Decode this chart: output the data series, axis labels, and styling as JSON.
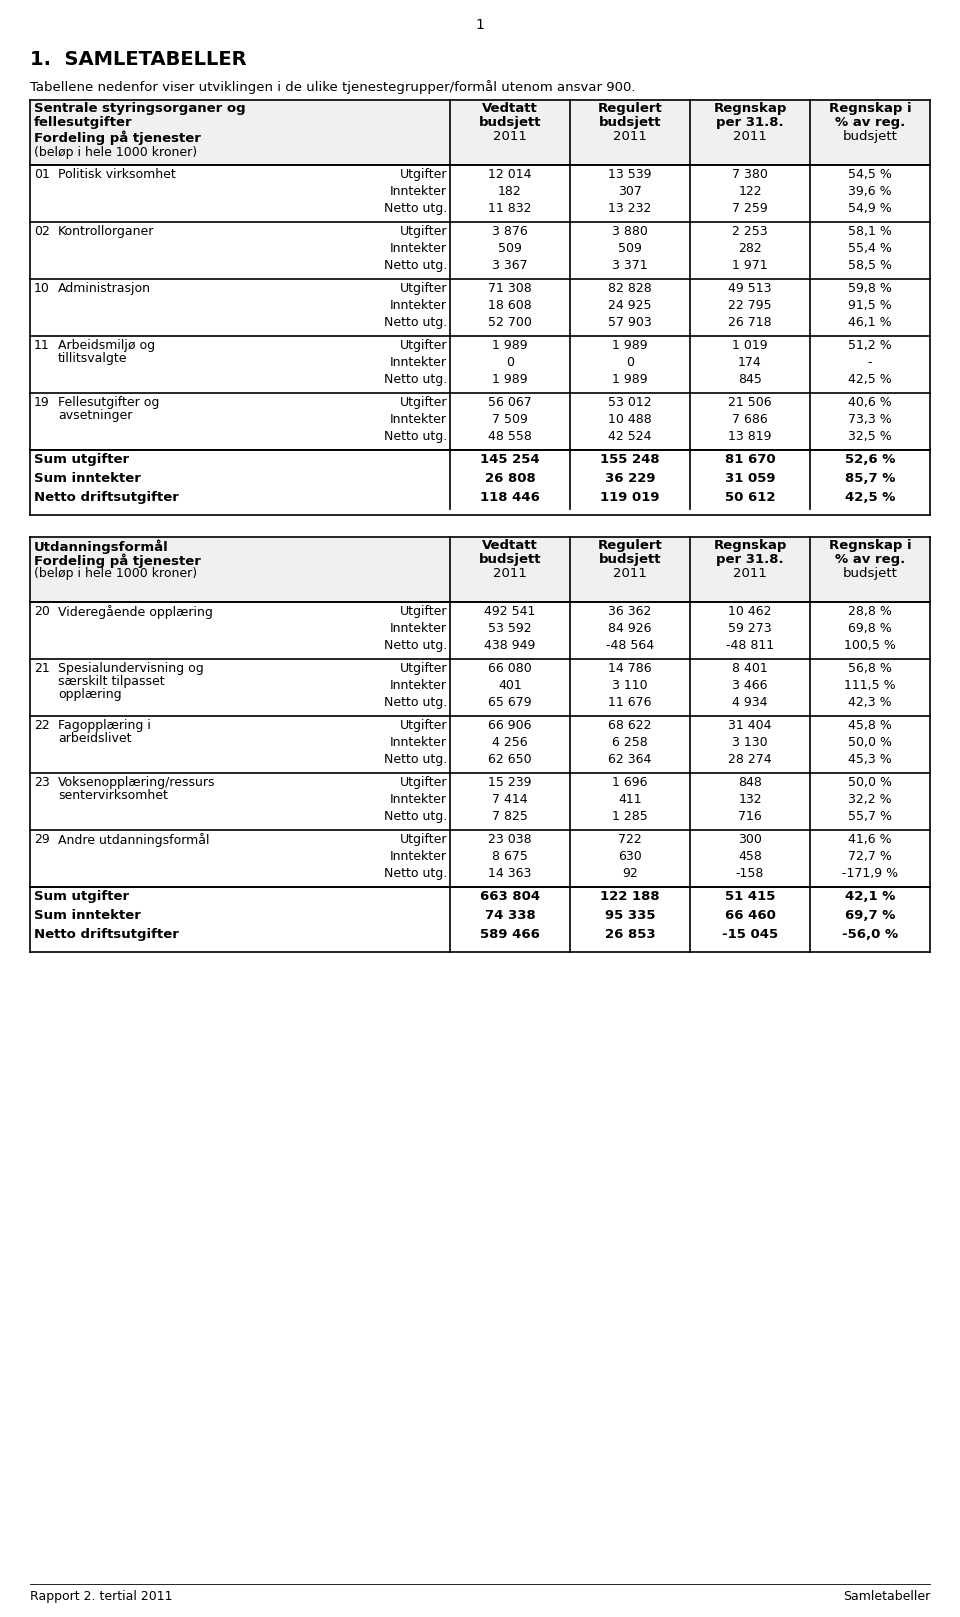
{
  "page_number": "1",
  "main_title": "1.  SAMLETABELLER",
  "subtitle": "Tabellene nedenfor viser utviklingen i de ulike tjenestegrupper/formål utenom ansvar 900.",
  "footer_left": "Rapport 2. tertial 2011",
  "footer_right": "Samletabeller",
  "table1": {
    "header_col1": "Sentrale styringsorganer og",
    "header_col1b": "fellesutgifter",
    "header_col1c": "Fordeling på tjenester",
    "header_col1d": "(beløp i hele 1000 kroner)",
    "header_col2": "Vedtatt\nbudsjett\n2011",
    "header_col3": "Regulert\nbudsjett\n2011",
    "header_col4": "Regnskap\nper 31.8.\n2011",
    "header_col5": "Regnskap i\n% av reg.\nbudsjett",
    "sections": [
      {
        "code": "01",
        "name": "Politisk virksomhet",
        "name2": "",
        "rows": [
          {
            "label": "Utgifter",
            "v1": "12 014",
            "v2": "13 539",
            "v3": "7 380",
            "v4": "54,5 %"
          },
          {
            "label": "Inntekter",
            "v1": "182",
            "v2": "307",
            "v3": "122",
            "v4": "39,6 %"
          },
          {
            "label": "Netto utg.",
            "v1": "11 832",
            "v2": "13 232",
            "v3": "7 259",
            "v4": "54,9 %"
          }
        ]
      },
      {
        "code": "02",
        "name": "Kontrollorganer",
        "name2": "",
        "rows": [
          {
            "label": "Utgifter",
            "v1": "3 876",
            "v2": "3 880",
            "v3": "2 253",
            "v4": "58,1 %"
          },
          {
            "label": "Inntekter",
            "v1": "509",
            "v2": "509",
            "v3": "282",
            "v4": "55,4 %"
          },
          {
            "label": "Netto utg.",
            "v1": "3 367",
            "v2": "3 371",
            "v3": "1 971",
            "v4": "58,5 %"
          }
        ]
      },
      {
        "code": "10",
        "name": "Administrasjon",
        "name2": "",
        "rows": [
          {
            "label": "Utgifter",
            "v1": "71 308",
            "v2": "82 828",
            "v3": "49 513",
            "v4": "59,8 %"
          },
          {
            "label": "Inntekter",
            "v1": "18 608",
            "v2": "24 925",
            "v3": "22 795",
            "v4": "91,5 %"
          },
          {
            "label": "Netto utg.",
            "v1": "52 700",
            "v2": "57 903",
            "v3": "26 718",
            "v4": "46,1 %"
          }
        ]
      },
      {
        "code": "11",
        "name": "Arbeidsmiljø og",
        "name2": "tillitsvalgte",
        "rows": [
          {
            "label": "Utgifter",
            "v1": "1 989",
            "v2": "1 989",
            "v3": "1 019",
            "v4": "51,2 %"
          },
          {
            "label": "Inntekter",
            "v1": "0",
            "v2": "0",
            "v3": "174",
            "v4": "-"
          },
          {
            "label": "Netto utg.",
            "v1": "1 989",
            "v2": "1 989",
            "v3": "845",
            "v4": "42,5 %"
          }
        ]
      },
      {
        "code": "19",
        "name": "Fellesutgifter og",
        "name2": "avsetninger",
        "rows": [
          {
            "label": "Utgifter",
            "v1": "56 067",
            "v2": "53 012",
            "v3": "21 506",
            "v4": "40,6 %"
          },
          {
            "label": "Inntekter",
            "v1": "7 509",
            "v2": "10 488",
            "v3": "7 686",
            "v4": "73,3 %"
          },
          {
            "label": "Netto utg.",
            "v1": "48 558",
            "v2": "42 524",
            "v3": "13 819",
            "v4": "32,5 %"
          }
        ]
      }
    ],
    "totals": [
      {
        "label": "Sum utgifter",
        "v1": "145 254",
        "v2": "155 248",
        "v3": "81 670",
        "v4": "52,6 %"
      },
      {
        "label": "Sum inntekter",
        "v1": "26 808",
        "v2": "36 229",
        "v3": "31 059",
        "v4": "85,7 %"
      },
      {
        "label": "Netto driftsutgifter",
        "v1": "118 446",
        "v2": "119 019",
        "v3": "50 612",
        "v4": "42,5 %"
      }
    ]
  },
  "table2": {
    "header_col1": "Utdanningsformål",
    "header_col1b": "Fordeling på tjenester",
    "header_col1c": "(beløp i hele 1000 kroner)",
    "header_col2": "Vedtatt\nbudsjett\n2011",
    "header_col3": "Regulert\nbudsjett\n2011",
    "header_col4": "Regnskap\nper 31.8.\n2011",
    "header_col5": "Regnskap i\n% av reg.\nbudsjett",
    "sections": [
      {
        "code": "20",
        "name": "Videregående opplæring",
        "name2": "",
        "rows": [
          {
            "label": "Utgifter",
            "v1": "492 541",
            "v2": "36 362",
            "v3": "10 462",
            "v4": "28,8 %"
          },
          {
            "label": "Inntekter",
            "v1": "53 592",
            "v2": "84 926",
            "v3": "59 273",
            "v4": "69,8 %"
          },
          {
            "label": "Netto utg.",
            "v1": "438 949",
            "v2": "-48 564",
            "v3": "-48 811",
            "v4": "100,5 %"
          }
        ]
      },
      {
        "code": "21",
        "name": "Spesialundervisning og",
        "name2": "særskilt tilpasset",
        "name3": "opplæring",
        "rows": [
          {
            "label": "Utgifter",
            "v1": "66 080",
            "v2": "14 786",
            "v3": "8 401",
            "v4": "56,8 %"
          },
          {
            "label": "Inntekter",
            "v1": "401",
            "v2": "3 110",
            "v3": "3 466",
            "v4": "111,5 %"
          },
          {
            "label": "Netto utg.",
            "v1": "65 679",
            "v2": "11 676",
            "v3": "4 934",
            "v4": "42,3 %"
          }
        ]
      },
      {
        "code": "22",
        "name": "Fagopplæring i",
        "name2": "arbeidslivet",
        "rows": [
          {
            "label": "Utgifter",
            "v1": "66 906",
            "v2": "68 622",
            "v3": "31 404",
            "v4": "45,8 %"
          },
          {
            "label": "Inntekter",
            "v1": "4 256",
            "v2": "6 258",
            "v3": "3 130",
            "v4": "50,0 %"
          },
          {
            "label": "Netto utg.",
            "v1": "62 650",
            "v2": "62 364",
            "v3": "28 274",
            "v4": "45,3 %"
          }
        ]
      },
      {
        "code": "23",
        "name": "Voksenopplæring/ressurs",
        "name2": "sentervirksomhet",
        "rows": [
          {
            "label": "Utgifter",
            "v1": "15 239",
            "v2": "1 696",
            "v3": "848",
            "v4": "50,0 %"
          },
          {
            "label": "Inntekter",
            "v1": "7 414",
            "v2": "411",
            "v3": "132",
            "v4": "32,2 %"
          },
          {
            "label": "Netto utg.",
            "v1": "7 825",
            "v2": "1 285",
            "v3": "716",
            "v4": "55,7 %"
          }
        ]
      },
      {
        "code": "29",
        "name": "Andre utdanningsformål",
        "name2": "",
        "rows": [
          {
            "label": "Utgifter",
            "v1": "23 038",
            "v2": "722",
            "v3": "300",
            "v4": "41,6 %"
          },
          {
            "label": "Inntekter",
            "v1": "8 675",
            "v2": "630",
            "v3": "458",
            "v4": "72,7 %"
          },
          {
            "label": "Netto utg.",
            "v1": "14 363",
            "v2": "92",
            "v3": "-158",
            "v4": "-171,9 %"
          }
        ]
      }
    ],
    "totals": [
      {
        "label": "Sum utgifter",
        "v1": "663 804",
        "v2": "122 188",
        "v3": "51 415",
        "v4": "42,1 %"
      },
      {
        "label": "Sum inntekter",
        "v1": "74 338",
        "v2": "95 335",
        "v3": "66 460",
        "v4": "69,7 %"
      },
      {
        "label": "Netto driftsutgifter",
        "v1": "589 466",
        "v2": "26 853",
        "v3": "-15 045",
        "v4": "-56,0 %"
      }
    ]
  },
  "bg_color": "#ffffff",
  "text_color": "#000000",
  "line_color": "#000000",
  "header_bg": "#d0d0d0",
  "font_size": 8.5,
  "font_family": "DejaVu Sans"
}
